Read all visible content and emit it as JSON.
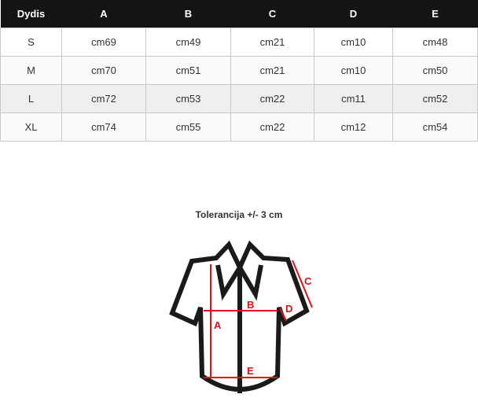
{
  "table": {
    "headers": [
      "Dydis",
      "A",
      "B",
      "C",
      "D",
      "E"
    ],
    "rows": [
      [
        "S",
        "cm69",
        "cm49",
        "cm21",
        "cm10",
        "cm48"
      ],
      [
        "M",
        "cm70",
        "cm51",
        "cm21",
        "cm10",
        "cm50"
      ],
      [
        "L",
        "cm72",
        "cm53",
        "cm22",
        "cm11",
        "cm52"
      ],
      [
        "XL",
        "cm74",
        "cm55",
        "cm22",
        "cm12",
        "cm54"
      ]
    ]
  },
  "tolerance": "Tolerancija +/- 3 cm",
  "diagram": {
    "labels": {
      "a": "A",
      "b": "B",
      "c": "C",
      "d": "D",
      "e": "E"
    },
    "measure_color": "#e0101a"
  }
}
